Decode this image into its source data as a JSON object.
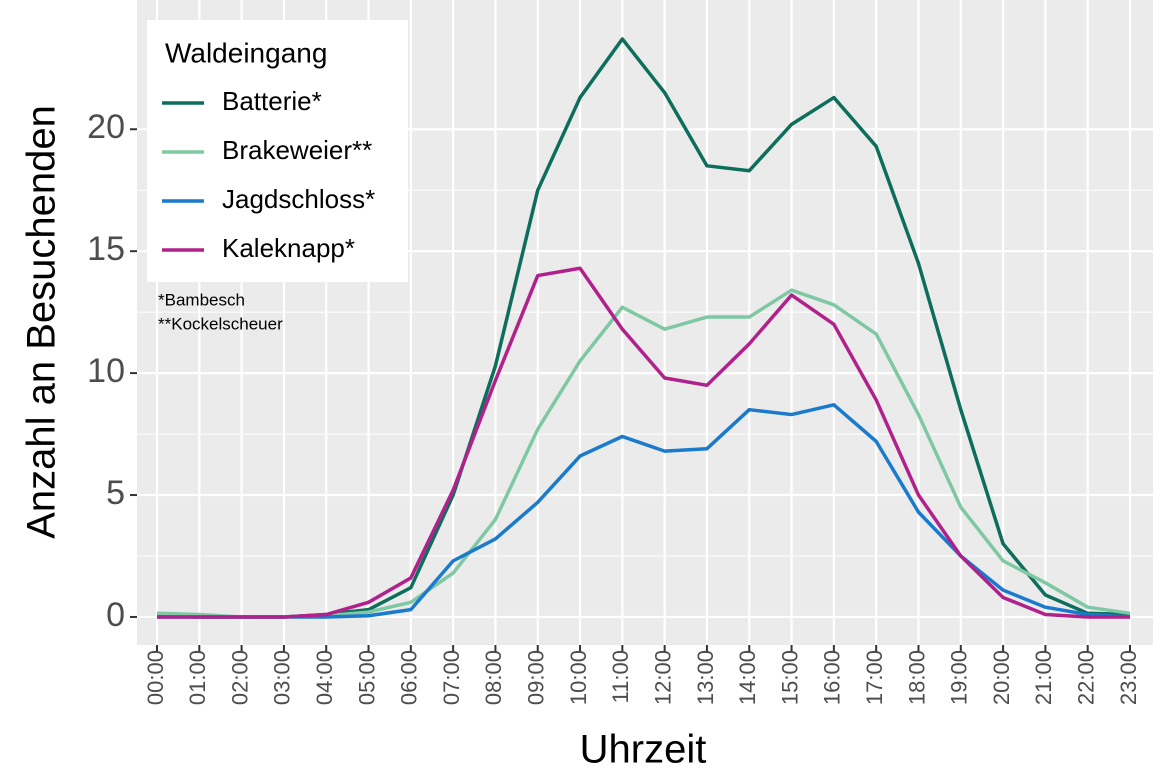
{
  "chart_data": {
    "type": "line",
    "x_label": "Uhrzeit",
    "y_label": "Anzahl an Besuchenden",
    "legend_title": "Waldeingang",
    "legend": "top-left",
    "annotations": [
      "*Bambesch",
      "**Kockelscheuer"
    ],
    "categories": [
      "00:00",
      "01:00",
      "02:00",
      "03:00",
      "04:00",
      "05:00",
      "06:00",
      "07:00",
      "08:00",
      "09:00",
      "10:00",
      "11:00",
      "12:00",
      "13:00",
      "14:00",
      "15:00",
      "16:00",
      "17:00",
      "18:00",
      "19:00",
      "20:00",
      "21:00",
      "22:00",
      "23:00"
    ],
    "series": [
      {
        "name": "Batterie*",
        "color": "#0e6e5c",
        "values": [
          0.05,
          0,
          0,
          0,
          0.1,
          0.3,
          1.2,
          5.0,
          10.3,
          17.5,
          21.3,
          23.7,
          21.5,
          18.5,
          18.3,
          20.2,
          21.3,
          19.3,
          14.5,
          8.5,
          3.0,
          0.9,
          0.15,
          0.1
        ]
      },
      {
        "name": "Brakeweier**",
        "color": "#7fc8a4",
        "values": [
          0.15,
          0.1,
          0,
          0,
          0.05,
          0.2,
          0.6,
          1.8,
          4.0,
          7.7,
          10.5,
          12.7,
          11.8,
          12.3,
          12.3,
          13.4,
          12.8,
          11.6,
          8.3,
          4.5,
          2.3,
          1.4,
          0.4,
          0.15
        ]
      },
      {
        "name": "Jagdschloss*",
        "color": "#1a7acc",
        "values": [
          0,
          0,
          0,
          0,
          0,
          0.05,
          0.3,
          2.3,
          3.2,
          4.7,
          6.6,
          7.4,
          6.8,
          6.9,
          8.5,
          8.3,
          8.7,
          7.2,
          4.3,
          2.5,
          1.1,
          0.4,
          0.1,
          0
        ]
      },
      {
        "name": "Kaleknapp*",
        "color": "#b0218c",
        "values": [
          0,
          0,
          0,
          0,
          0.1,
          0.6,
          1.6,
          5.2,
          9.7,
          14.0,
          14.3,
          11.8,
          9.8,
          9.5,
          11.2,
          13.2,
          12.0,
          8.9,
          5.0,
          2.5,
          0.8,
          0.1,
          0,
          0
        ]
      }
    ],
    "ylim": [
      -1.15,
      25.3
    ],
    "yticks": [
      0,
      5,
      10,
      15,
      20
    ],
    "grid": true
  }
}
